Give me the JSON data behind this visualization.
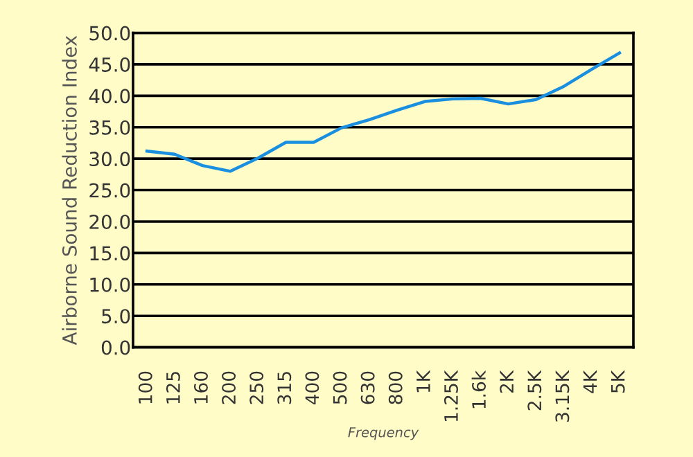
{
  "chart_data": {
    "type": "line",
    "xlabel": "Frequency",
    "ylabel": "Airborne Sound Reduction Index",
    "categories": [
      "100",
      "125",
      "160",
      "200",
      "250",
      "315",
      "400",
      "500",
      "630",
      "800",
      "1K",
      "1.25K",
      "1.6k",
      "2K",
      "2.5K",
      "3.15K",
      "4K",
      "5K"
    ],
    "series": [
      {
        "color": "#1a8fe0",
        "values": [
          31.2,
          30.7,
          28.9,
          28.0,
          30.1,
          32.6,
          32.6,
          34.9,
          36.2,
          37.7,
          39.1,
          39.5,
          39.6,
          38.7,
          39.4,
          41.5,
          44.2,
          46.8
        ]
      }
    ],
    "ylim": [
      0,
      50
    ],
    "yticks": [
      {
        "value": 0,
        "label": "0.0"
      },
      {
        "value": 5,
        "label": "5.0"
      },
      {
        "value": 10,
        "label": "10.0"
      },
      {
        "value": 15,
        "label": "15.0"
      },
      {
        "value": 20,
        "label": "20.0"
      },
      {
        "value": 25,
        "label": "25.0"
      },
      {
        "value": 30,
        "label": "30.0"
      },
      {
        "value": 35,
        "label": "35.0"
      },
      {
        "value": 40,
        "label": "40.0"
      },
      {
        "value": 45,
        "label": "45.0"
      },
      {
        "value": 50,
        "label": "50.0"
      }
    ],
    "grid": "y",
    "marker": "none",
    "line_style": "solid"
  }
}
